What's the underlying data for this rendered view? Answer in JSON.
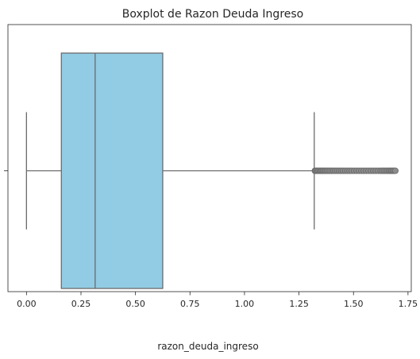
{
  "chart_data": {
    "type": "boxplot",
    "title": "Boxplot de Razon Deuda Ingreso",
    "xlabel": "razon_deuda_ingreso",
    "ylabel": "",
    "orientation": "horizontal",
    "xlim": [
      -0.085,
      1.765
    ],
    "xticks": [
      0.0,
      0.25,
      0.5,
      0.75,
      1.0,
      1.25,
      1.5,
      1.75
    ],
    "xtick_labels": [
      "0.00",
      "0.25",
      "0.50",
      "0.75",
      "1.00",
      "1.25",
      "1.50",
      "1.75"
    ],
    "grid": false,
    "box_color": "#92cbe4",
    "line_color": "#6b6b6b",
    "stats": {
      "whisker_low": 0.0,
      "q1": 0.16,
      "median": 0.315,
      "q3": 0.625,
      "whisker_high": 1.32
    },
    "outliers": [
      1.323,
      1.326,
      1.33,
      1.335,
      1.34,
      1.345,
      1.35,
      1.355,
      1.36,
      1.366,
      1.372,
      1.378,
      1.385,
      1.392,
      1.4,
      1.408,
      1.416,
      1.425,
      1.434,
      1.443,
      1.452,
      1.462,
      1.472,
      1.482,
      1.492,
      1.503,
      1.514,
      1.525,
      1.536,
      1.547,
      1.558,
      1.569,
      1.58,
      1.591,
      1.602,
      1.613,
      1.624,
      1.632,
      1.64,
      1.648,
      1.655,
      1.662,
      1.668,
      1.674,
      1.68,
      1.686,
      1.692
    ]
  }
}
